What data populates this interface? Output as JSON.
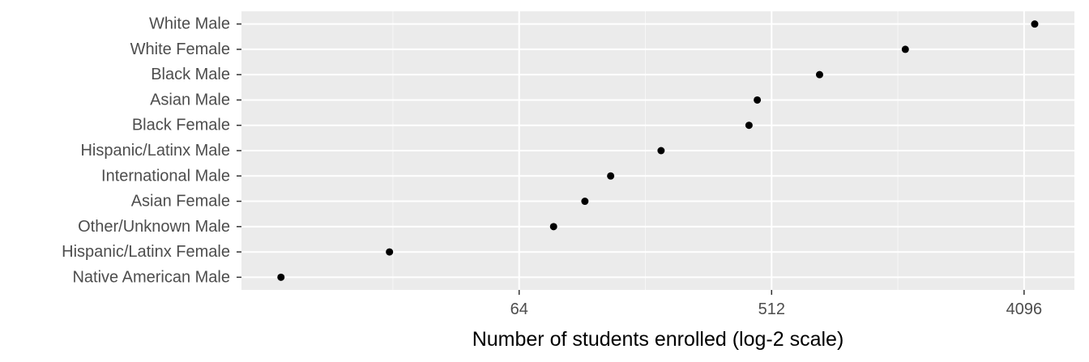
{
  "chart_data": {
    "type": "scatter",
    "title": "",
    "xlabel": "Number of students enrolled (log-2 scale)",
    "ylabel": "",
    "x_scale": "log2",
    "x_ticks": [
      64,
      512,
      4096
    ],
    "xlim": [
      6.5,
      6200
    ],
    "grid": true,
    "legend": "none",
    "categories": [
      "White Male",
      "White Female",
      "Black Male",
      "Asian Male",
      "Black Female",
      "Hispanic/Latinx Male",
      "International Male",
      "Asian Female",
      "Other/Unknown Male",
      "Hispanic/Latinx Female",
      "Native American Male"
    ],
    "values": [
      4470,
      1540,
      760,
      455,
      425,
      206,
      136,
      110,
      85,
      22,
      9
    ],
    "colors": {
      "panel": "#ebebeb",
      "grid_major": "#ffffff",
      "grid_minor": "#f7f7f7",
      "point": "#000000",
      "tick": "#333333"
    }
  }
}
